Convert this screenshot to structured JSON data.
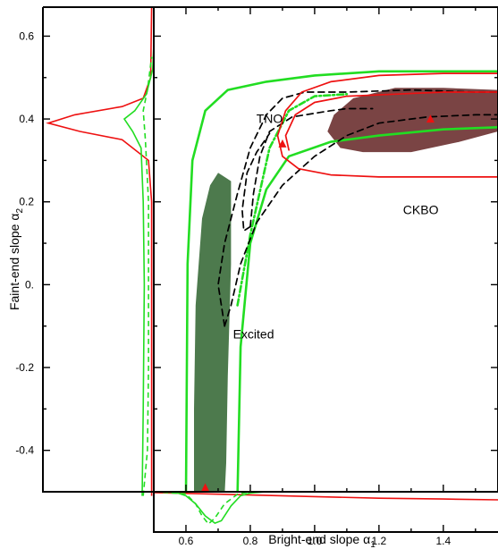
{
  "chart_data": {
    "type": "scatter",
    "xlabel": "Bright-end slope α",
    "xlabel_sub": "1",
    "ylabel": "Faint-end slope α",
    "ylabel_sub": "2",
    "xlim": [
      0.5,
      1.57
    ],
    "ylim": [
      -0.5,
      0.67
    ],
    "xticks": [
      0.6,
      0.8,
      1.0,
      1.2,
      1.4
    ],
    "xtick_labels": [
      "0.6",
      "0.8",
      "1.0",
      "1.2",
      "1.4"
    ],
    "yticks": [
      -0.4,
      -0.2,
      0.0,
      0.2,
      0.4,
      0.6
    ],
    "ytick_labels": [
      "-0.4",
      "-0.2",
      "0.",
      "0.2",
      "0.4",
      "0.6"
    ],
    "region_labels": [
      {
        "text": "TNO",
        "x": 0.86,
        "y": 0.39
      },
      {
        "text": "CKBO",
        "x": 1.33,
        "y": 0.17
      },
      {
        "text": "Excited",
        "x": 0.81,
        "y": -0.13
      }
    ],
    "best_fit_points": [
      {
        "name": "Excited",
        "x": 0.66,
        "y": -0.49,
        "color": "#ee1111"
      },
      {
        "name": "TNO",
        "x": 0.9,
        "y": 0.34,
        "color": "#ee1111"
      },
      {
        "name": "CKBO",
        "x": 1.36,
        "y": 0.4,
        "color": "#ee1111"
      }
    ],
    "filled_regions": [
      {
        "name": "Excited",
        "color": "#4d7a4d",
        "points": [
          [
            0.7,
            0.27
          ],
          [
            0.74,
            0.25
          ],
          [
            0.74,
            0.05
          ],
          [
            0.73,
            -0.22
          ],
          [
            0.725,
            -0.43
          ],
          [
            0.72,
            -0.51
          ],
          [
            0.625,
            -0.51
          ],
          [
            0.625,
            -0.3
          ],
          [
            0.63,
            -0.05
          ],
          [
            0.65,
            0.16
          ],
          [
            0.675,
            0.24
          ]
        ]
      },
      {
        "name": "CKBO",
        "color": "#7a4444",
        "points": [
          [
            1.12,
            0.45
          ],
          [
            1.25,
            0.475
          ],
          [
            1.4,
            0.475
          ],
          [
            1.57,
            0.47
          ],
          [
            1.57,
            0.37
          ],
          [
            1.45,
            0.345
          ],
          [
            1.3,
            0.32
          ],
          [
            1.15,
            0.32
          ],
          [
            1.08,
            0.33
          ],
          [
            1.04,
            0.37
          ],
          [
            1.06,
            0.41
          ]
        ]
      }
    ],
    "contours": [
      {
        "name": "Excited 1σ (green)",
        "color": "#22dd22",
        "dash": "",
        "points": [
          [
            0.6,
            -0.51
          ],
          [
            0.605,
            0.05
          ],
          [
            0.62,
            0.3
          ],
          [
            0.66,
            0.42
          ],
          [
            0.73,
            0.47
          ],
          [
            0.85,
            0.49
          ],
          [
            1.0,
            0.505
          ],
          [
            1.2,
            0.515
          ],
          [
            1.4,
            0.515
          ],
          [
            1.57,
            0.515
          ]
        ]
      },
      {
        "name": "Excited inner (green)",
        "color": "#22dd22",
        "dash": "",
        "points": [
          [
            0.76,
            -0.51
          ],
          [
            0.77,
            -0.15
          ],
          [
            0.8,
            0.1
          ],
          [
            0.85,
            0.23
          ],
          [
            0.92,
            0.31
          ],
          [
            1.05,
            0.345
          ],
          [
            1.2,
            0.36
          ],
          [
            1.4,
            0.375
          ],
          [
            1.57,
            0.38
          ]
        ]
      },
      {
        "name": "Excited 2σ (green dash-dot)",
        "color": "#22dd22",
        "dash": "7,3,2,3",
        "points": [
          [
            0.76,
            -0.05
          ],
          [
            0.8,
            0.12
          ],
          [
            0.86,
            0.33
          ],
          [
            0.92,
            0.42
          ],
          [
            1.0,
            0.455
          ],
          [
            1.1,
            0.46
          ]
        ]
      },
      {
        "name": "TNO outer (black dashed)",
        "color": "#000000",
        "dash": "7,5",
        "points": [
          [
            0.72,
            -0.1
          ],
          [
            0.7,
            0.0
          ],
          [
            0.72,
            0.1
          ],
          [
            0.76,
            0.22
          ],
          [
            0.8,
            0.33
          ],
          [
            0.85,
            0.41
          ],
          [
            0.9,
            0.45
          ],
          [
            0.97,
            0.465
          ],
          [
            1.1,
            0.465
          ],
          [
            1.3,
            0.47
          ],
          [
            1.5,
            0.465
          ],
          [
            1.57,
            0.465
          ]
        ]
      },
      {
        "name": "TNO inner (black dashed)",
        "color": "#000000",
        "dash": "7,5",
        "points": [
          [
            0.8,
            0.14
          ],
          [
            0.81,
            0.22
          ],
          [
            0.83,
            0.31
          ],
          [
            0.86,
            0.37
          ],
          [
            0.93,
            0.405
          ],
          [
            1.05,
            0.42
          ],
          [
            1.1,
            0.425
          ],
          [
            1.18,
            0.425
          ]
        ]
      },
      {
        "name": "TNO lower (black dashed)",
        "color": "#000000",
        "dash": "7,5",
        "points": [
          [
            0.72,
            -0.1
          ],
          [
            0.74,
            -0.05
          ],
          [
            0.77,
            0.05
          ],
          [
            0.82,
            0.15
          ],
          [
            0.9,
            0.24
          ],
          [
            1.0,
            0.31
          ],
          [
            1.1,
            0.36
          ],
          [
            1.2,
            0.39
          ],
          [
            1.35,
            0.405
          ],
          [
            1.5,
            0.41
          ],
          [
            1.57,
            0.41
          ]
        ]
      },
      {
        "name": "TNO loop (black dashed)",
        "color": "#000000",
        "dash": "7,5",
        "points": [
          [
            0.8,
            0.14
          ],
          [
            0.78,
            0.13
          ],
          [
            0.775,
            0.18
          ],
          [
            0.79,
            0.27
          ],
          [
            0.82,
            0.32
          ],
          [
            0.86,
            0.365
          ]
        ]
      },
      {
        "name": "CKBO 1σ (red)",
        "color": "#ee1111",
        "dash": "",
        "points": [
          [
            1.57,
            0.51
          ],
          [
            1.4,
            0.51
          ],
          [
            1.2,
            0.505
          ],
          [
            1.05,
            0.49
          ],
          [
            0.96,
            0.465
          ],
          [
            0.91,
            0.42
          ],
          [
            0.885,
            0.36
          ],
          [
            0.9,
            0.31
          ],
          [
            0.95,
            0.28
          ],
          [
            1.05,
            0.265
          ],
          [
            1.2,
            0.26
          ],
          [
            1.4,
            0.26
          ],
          [
            1.57,
            0.26
          ]
        ]
      },
      {
        "name": "CKBO inner (red)",
        "color": "#ee1111",
        "dash": "",
        "points": [
          [
            1.57,
            0.465
          ],
          [
            1.4,
            0.465
          ],
          [
            1.25,
            0.46
          ],
          [
            1.1,
            0.455
          ],
          [
            1.0,
            0.44
          ],
          [
            0.94,
            0.41
          ],
          [
            0.91,
            0.36
          ],
          [
            0.92,
            0.325
          ]
        ]
      }
    ],
    "marginal_y": [
      {
        "name": "CKBO",
        "color": "#ee1111",
        "dash": "",
        "points": [
          [
            -0.51,
            0.02
          ],
          [
            0.2,
            0.02
          ],
          [
            0.3,
            0.05
          ],
          [
            0.35,
            0.3
          ],
          [
            0.37,
            0.7
          ],
          [
            0.39,
            1.0
          ],
          [
            0.41,
            0.75
          ],
          [
            0.43,
            0.3
          ],
          [
            0.45,
            0.1
          ],
          [
            0.5,
            0.03
          ],
          [
            0.67,
            0.02
          ]
        ]
      },
      {
        "name": "Excited",
        "color": "#22dd22",
        "dash": "",
        "points": [
          [
            -0.51,
            0.11
          ],
          [
            -0.3,
            0.1
          ],
          [
            0.0,
            0.09
          ],
          [
            0.2,
            0.1
          ],
          [
            0.33,
            0.12
          ],
          [
            0.37,
            0.2
          ],
          [
            0.4,
            0.28
          ],
          [
            0.42,
            0.18
          ],
          [
            0.46,
            0.07
          ],
          [
            0.52,
            0.01
          ],
          [
            0.58,
            0.0
          ]
        ]
      },
      {
        "name": "TNO",
        "color": "#22dd22",
        "dash": "6,4",
        "points": [
          [
            -0.51,
            0.1
          ],
          [
            -0.4,
            0.06
          ],
          [
            -0.2,
            0.05
          ],
          [
            0.0,
            0.05
          ],
          [
            0.2,
            0.05
          ],
          [
            0.35,
            0.08
          ],
          [
            0.42,
            0.1
          ],
          [
            0.47,
            0.06
          ],
          [
            0.55,
            0.02
          ]
        ]
      }
    ],
    "marginal_x": [
      {
        "name": "CKBO",
        "color": "#ee1111",
        "dash": "",
        "points": [
          [
            0.5,
            0.02
          ],
          [
            0.6,
            0.04
          ],
          [
            0.7,
            0.06
          ],
          [
            0.8,
            0.08
          ],
          [
            1.0,
            0.12
          ],
          [
            1.2,
            0.16
          ],
          [
            1.4,
            0.18
          ],
          [
            1.57,
            0.2
          ]
        ]
      },
      {
        "name": "Excited",
        "color": "#22dd22",
        "dash": "",
        "points": [
          [
            0.5,
            0.0
          ],
          [
            0.57,
            0.02
          ],
          [
            0.6,
            0.1
          ],
          [
            0.63,
            0.3
          ],
          [
            0.66,
            0.6
          ],
          [
            0.69,
            0.78
          ],
          [
            0.71,
            0.72
          ],
          [
            0.74,
            0.35
          ],
          [
            0.77,
            0.1
          ],
          [
            0.8,
            0.03
          ],
          [
            0.85,
            0.0
          ]
        ]
      },
      {
        "name": "TNO",
        "color": "#22dd22",
        "dash": "6,4",
        "points": [
          [
            0.5,
            0.0
          ],
          [
            0.6,
            0.05
          ],
          [
            0.63,
            0.3
          ],
          [
            0.65,
            0.6
          ],
          [
            0.67,
            0.8
          ],
          [
            0.69,
            0.65
          ],
          [
            0.72,
            0.3
          ],
          [
            0.76,
            0.06
          ],
          [
            0.8,
            0.0
          ]
        ]
      }
    ]
  }
}
